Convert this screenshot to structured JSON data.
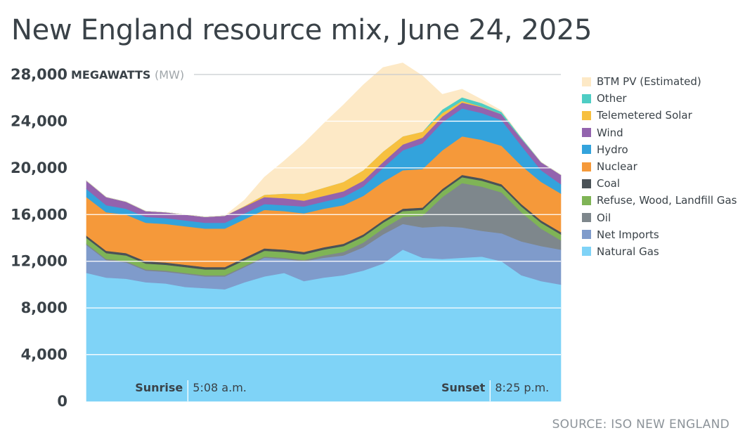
{
  "title": "New England resource mix, June 24, 2025",
  "source": "SOURCE: ISO NEW ENGLAND",
  "chart_data": {
    "type": "area",
    "stacked": true,
    "title": "New England resource mix, June 24, 2025",
    "y_unit": "MEGAWATTS",
    "y_unit_abbr": "(MW)",
    "ylim": [
      0,
      28000
    ],
    "yticks": [
      "0",
      "4,000",
      "8,000",
      "12,000",
      "16,000",
      "20,000",
      "24,000",
      "28,000"
    ],
    "ytick_values": [
      0,
      4000,
      8000,
      12000,
      16000,
      20000,
      24000,
      28000
    ],
    "xlim": [
      0,
      24
    ],
    "grid": true,
    "legend_position": "right",
    "annotations": [
      {
        "label": "Sunrise",
        "value": "5:08 a.m.",
        "hour": 5.13
      },
      {
        "label": "Sunset",
        "value": "8:25 p.m.",
        "hour": 20.42
      }
    ],
    "hours": [
      0,
      1,
      2,
      3,
      4,
      5,
      6,
      7,
      8,
      9,
      10,
      11,
      12,
      13,
      14,
      15,
      16,
      17,
      18,
      19,
      20,
      21,
      22,
      23,
      24
    ],
    "series": [
      {
        "name": "Natural Gas",
        "color": "#7fd3f7",
        "values": [
          11000,
          10600,
          10500,
          10200,
          10100,
          9800,
          9700,
          9600,
          10200,
          10700,
          11000,
          10300,
          10600,
          10800,
          11200,
          11800,
          13000,
          12300,
          12200,
          12300,
          12400,
          12000,
          10800,
          10300,
          10000
        ]
      },
      {
        "name": "Net Imports",
        "color": "#7f9bcb",
        "values": [
          2400,
          1500,
          1400,
          1000,
          1000,
          1100,
          1000,
          1100,
          1300,
          1600,
          1200,
          1700,
          1700,
          1700,
          2000,
          2500,
          2200,
          2600,
          2800,
          2600,
          2200,
          2400,
          2900,
          3000,
          3000
        ]
      },
      {
        "name": "Oil",
        "color": "#7e878c",
        "values": [
          100,
          100,
          100,
          100,
          100,
          100,
          100,
          100,
          100,
          100,
          100,
          100,
          200,
          300,
          400,
          500,
          600,
          1000,
          2500,
          3800,
          3800,
          3500,
          2500,
          1500,
          800
        ]
      },
      {
        "name": "Refuse, Wood, Landfill Gas",
        "color": "#7fb456",
        "values": [
          500,
          500,
          500,
          500,
          500,
          500,
          500,
          500,
          500,
          500,
          500,
          500,
          500,
          500,
          500,
          500,
          500,
          500,
          500,
          500,
          500,
          500,
          500,
          500,
          500
        ]
      },
      {
        "name": "Coal",
        "color": "#4a5257",
        "values": [
          200,
          200,
          200,
          200,
          200,
          200,
          200,
          200,
          200,
          200,
          200,
          200,
          200,
          200,
          200,
          200,
          200,
          200,
          200,
          200,
          200,
          200,
          200,
          200,
          200
        ]
      },
      {
        "name": "Nuclear",
        "color": "#f5993a",
        "values": [
          3300,
          3300,
          3300,
          3300,
          3300,
          3300,
          3300,
          3300,
          3300,
          3300,
          3300,
          3300,
          3300,
          3300,
          3300,
          3300,
          3300,
          3300,
          3300,
          3300,
          3300,
          3300,
          3300,
          3300,
          3300
        ]
      },
      {
        "name": "Hydro",
        "color": "#33a3dc",
        "values": [
          700,
          600,
          500,
          500,
          500,
          500,
          500,
          500,
          500,
          500,
          500,
          600,
          600,
          700,
          800,
          1200,
          1700,
          2200,
          2400,
          2400,
          2300,
          2200,
          1700,
          1000,
          800
        ]
      },
      {
        "name": "Wind",
        "color": "#9363ae",
        "values": [
          700,
          700,
          600,
          500,
          500,
          500,
          500,
          600,
          600,
          600,
          600,
          500,
          500,
          500,
          500,
          500,
          500,
          500,
          500,
          500,
          500,
          500,
          600,
          700,
          800
        ]
      },
      {
        "name": "Telemetered Solar",
        "color": "#f7c040",
        "values": [
          0,
          0,
          0,
          0,
          0,
          0,
          0,
          0,
          50,
          200,
          400,
          600,
          700,
          800,
          900,
          900,
          700,
          500,
          300,
          150,
          50,
          0,
          0,
          0,
          0
        ]
      },
      {
        "name": "Other",
        "color": "#4ecdc4",
        "values": [
          0,
          0,
          0,
          0,
          0,
          0,
          0,
          0,
          0,
          0,
          0,
          0,
          0,
          0,
          0,
          0,
          0,
          0,
          300,
          300,
          300,
          200,
          100,
          0,
          0
        ]
      },
      {
        "name": "BTM PV (Estimated)",
        "color": "#fde9c6",
        "values": [
          0,
          0,
          0,
          0,
          0,
          0,
          0,
          0,
          500,
          1500,
          2800,
          4300,
          5500,
          6600,
          7300,
          7200,
          6300,
          4800,
          1300,
          700,
          300,
          100,
          0,
          0,
          0
        ]
      }
    ]
  },
  "legend": [
    {
      "label": "BTM PV (Estimated)",
      "color": "#fde9c6"
    },
    {
      "label": "Other",
      "color": "#4ecdc4"
    },
    {
      "label": "Telemetered Solar",
      "color": "#f7c040"
    },
    {
      "label": "Wind",
      "color": "#9363ae"
    },
    {
      "label": "Hydro",
      "color": "#33a3dc"
    },
    {
      "label": "Nuclear",
      "color": "#f5993a"
    },
    {
      "label": "Coal",
      "color": "#4a5257"
    },
    {
      "label": "Refuse, Wood, Landfill Gas",
      "color": "#7fb456"
    },
    {
      "label": "Oil",
      "color": "#7e878c"
    },
    {
      "label": "Net Imports",
      "color": "#7f9bcb"
    },
    {
      "label": "Natural Gas",
      "color": "#7fd3f7"
    }
  ]
}
